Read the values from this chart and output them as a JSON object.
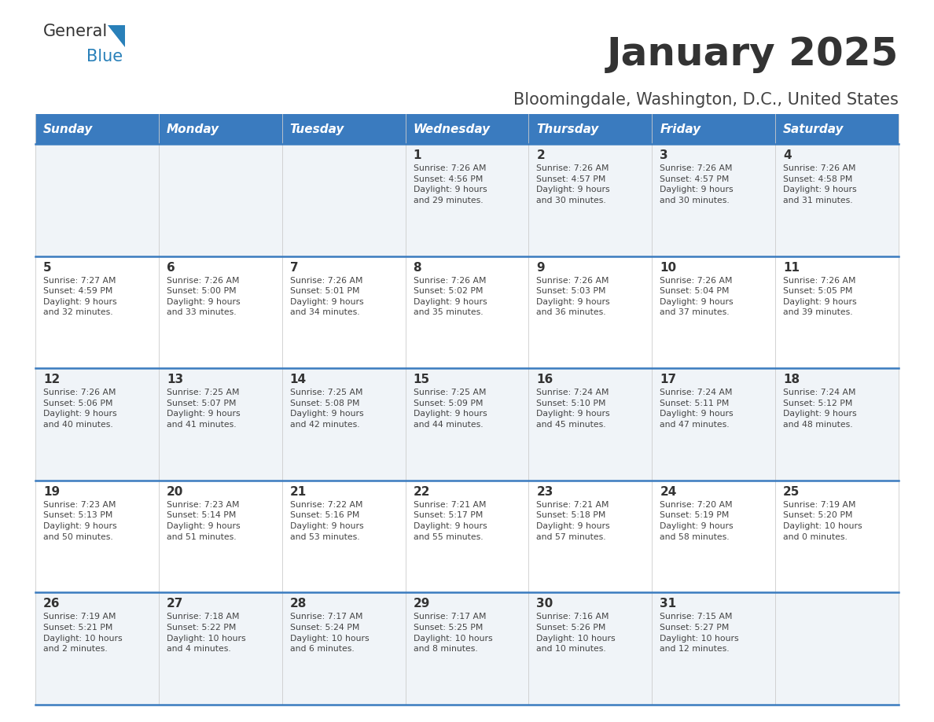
{
  "title": "January 2025",
  "subtitle": "Bloomingdale, Washington, D.C., United States",
  "header_bg_color": "#3a7bbf",
  "header_text_color": "#ffffff",
  "row_bg_even": "#f0f4f8",
  "row_bg_odd": "#ffffff",
  "divider_color": "#3a7bbf",
  "text_color": "#444444",
  "day_num_color": "#333333",
  "days_of_week": [
    "Sunday",
    "Monday",
    "Tuesday",
    "Wednesday",
    "Thursday",
    "Friday",
    "Saturday"
  ],
  "calendar_data": [
    [
      {
        "day": "",
        "info": ""
      },
      {
        "day": "",
        "info": ""
      },
      {
        "day": "",
        "info": ""
      },
      {
        "day": "1",
        "info": "Sunrise: 7:26 AM\nSunset: 4:56 PM\nDaylight: 9 hours\nand 29 minutes."
      },
      {
        "day": "2",
        "info": "Sunrise: 7:26 AM\nSunset: 4:57 PM\nDaylight: 9 hours\nand 30 minutes."
      },
      {
        "day": "3",
        "info": "Sunrise: 7:26 AM\nSunset: 4:57 PM\nDaylight: 9 hours\nand 30 minutes."
      },
      {
        "day": "4",
        "info": "Sunrise: 7:26 AM\nSunset: 4:58 PM\nDaylight: 9 hours\nand 31 minutes."
      }
    ],
    [
      {
        "day": "5",
        "info": "Sunrise: 7:27 AM\nSunset: 4:59 PM\nDaylight: 9 hours\nand 32 minutes."
      },
      {
        "day": "6",
        "info": "Sunrise: 7:26 AM\nSunset: 5:00 PM\nDaylight: 9 hours\nand 33 minutes."
      },
      {
        "day": "7",
        "info": "Sunrise: 7:26 AM\nSunset: 5:01 PM\nDaylight: 9 hours\nand 34 minutes."
      },
      {
        "day": "8",
        "info": "Sunrise: 7:26 AM\nSunset: 5:02 PM\nDaylight: 9 hours\nand 35 minutes."
      },
      {
        "day": "9",
        "info": "Sunrise: 7:26 AM\nSunset: 5:03 PM\nDaylight: 9 hours\nand 36 minutes."
      },
      {
        "day": "10",
        "info": "Sunrise: 7:26 AM\nSunset: 5:04 PM\nDaylight: 9 hours\nand 37 minutes."
      },
      {
        "day": "11",
        "info": "Sunrise: 7:26 AM\nSunset: 5:05 PM\nDaylight: 9 hours\nand 39 minutes."
      }
    ],
    [
      {
        "day": "12",
        "info": "Sunrise: 7:26 AM\nSunset: 5:06 PM\nDaylight: 9 hours\nand 40 minutes."
      },
      {
        "day": "13",
        "info": "Sunrise: 7:25 AM\nSunset: 5:07 PM\nDaylight: 9 hours\nand 41 minutes."
      },
      {
        "day": "14",
        "info": "Sunrise: 7:25 AM\nSunset: 5:08 PM\nDaylight: 9 hours\nand 42 minutes."
      },
      {
        "day": "15",
        "info": "Sunrise: 7:25 AM\nSunset: 5:09 PM\nDaylight: 9 hours\nand 44 minutes."
      },
      {
        "day": "16",
        "info": "Sunrise: 7:24 AM\nSunset: 5:10 PM\nDaylight: 9 hours\nand 45 minutes."
      },
      {
        "day": "17",
        "info": "Sunrise: 7:24 AM\nSunset: 5:11 PM\nDaylight: 9 hours\nand 47 minutes."
      },
      {
        "day": "18",
        "info": "Sunrise: 7:24 AM\nSunset: 5:12 PM\nDaylight: 9 hours\nand 48 minutes."
      }
    ],
    [
      {
        "day": "19",
        "info": "Sunrise: 7:23 AM\nSunset: 5:13 PM\nDaylight: 9 hours\nand 50 minutes."
      },
      {
        "day": "20",
        "info": "Sunrise: 7:23 AM\nSunset: 5:14 PM\nDaylight: 9 hours\nand 51 minutes."
      },
      {
        "day": "21",
        "info": "Sunrise: 7:22 AM\nSunset: 5:16 PM\nDaylight: 9 hours\nand 53 minutes."
      },
      {
        "day": "22",
        "info": "Sunrise: 7:21 AM\nSunset: 5:17 PM\nDaylight: 9 hours\nand 55 minutes."
      },
      {
        "day": "23",
        "info": "Sunrise: 7:21 AM\nSunset: 5:18 PM\nDaylight: 9 hours\nand 57 minutes."
      },
      {
        "day": "24",
        "info": "Sunrise: 7:20 AM\nSunset: 5:19 PM\nDaylight: 9 hours\nand 58 minutes."
      },
      {
        "day": "25",
        "info": "Sunrise: 7:19 AM\nSunset: 5:20 PM\nDaylight: 10 hours\nand 0 minutes."
      }
    ],
    [
      {
        "day": "26",
        "info": "Sunrise: 7:19 AM\nSunset: 5:21 PM\nDaylight: 10 hours\nand 2 minutes."
      },
      {
        "day": "27",
        "info": "Sunrise: 7:18 AM\nSunset: 5:22 PM\nDaylight: 10 hours\nand 4 minutes."
      },
      {
        "day": "28",
        "info": "Sunrise: 7:17 AM\nSunset: 5:24 PM\nDaylight: 10 hours\nand 6 minutes."
      },
      {
        "day": "29",
        "info": "Sunrise: 7:17 AM\nSunset: 5:25 PM\nDaylight: 10 hours\nand 8 minutes."
      },
      {
        "day": "30",
        "info": "Sunrise: 7:16 AM\nSunset: 5:26 PM\nDaylight: 10 hours\nand 10 minutes."
      },
      {
        "day": "31",
        "info": "Sunrise: 7:15 AM\nSunset: 5:27 PM\nDaylight: 10 hours\nand 12 minutes."
      },
      {
        "day": "",
        "info": ""
      }
    ]
  ],
  "logo_text_general": "General",
  "logo_text_blue": "Blue",
  "logo_color_general": "#333333",
  "logo_color_blue": "#2980b9",
  "fig_width": 11.88,
  "fig_height": 9.18,
  "dpi": 100
}
